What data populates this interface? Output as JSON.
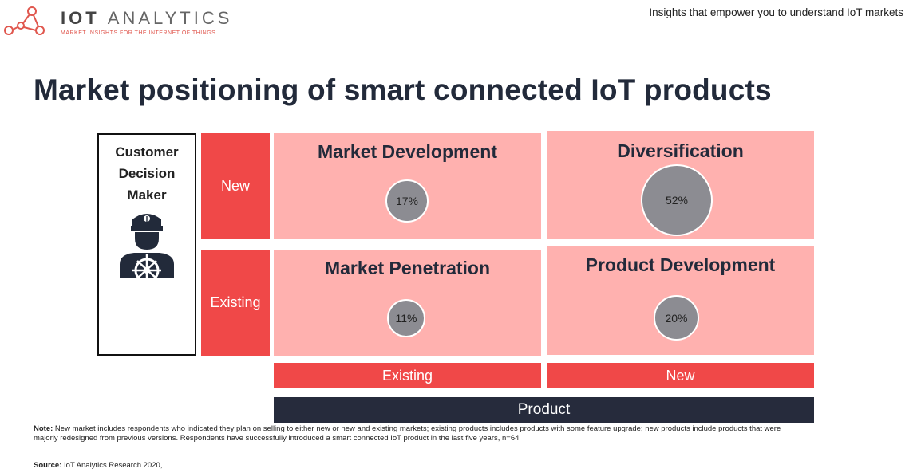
{
  "brand": {
    "name_bold": "IOT",
    "name_light": "ANALYTICS",
    "tagline": "MARKET INSIGHTS FOR THE INTERNET OF THINGS",
    "accent_color": "#f04848"
  },
  "header": {
    "tagline": "Insights that empower you to understand IoT markets"
  },
  "title": "Market positioning of smart connected IoT products",
  "matrix": {
    "y_axis_label": "Customer Decision Maker",
    "y_axis_icon": "ship-captain-icon",
    "rows": [
      "New",
      "Existing"
    ],
    "columns": [
      "Existing",
      "New"
    ],
    "x_axis_label": "Product",
    "quadrants": [
      {
        "title": "Market Development",
        "value": "17%",
        "share": 0.17
      },
      {
        "title": "Diversification",
        "value": "52%",
        "share": 0.52
      },
      {
        "title": "Market Penetration",
        "value": "11%",
        "share": 0.11
      },
      {
        "title": "Product Development",
        "value": "20%",
        "share": 0.2
      }
    ],
    "colors": {
      "quadrant": "#ffb1af",
      "label": "#f04848",
      "axis": "#262b3c",
      "bubble": "#8c8c92"
    }
  },
  "footer": {
    "note_label": "Note:",
    "note_text": "New market includes respondents who indicated they plan on selling to either new or new and existing markets; existing products includes products with some feature upgrade; new products include products that were majorly redesigned from previous versions. Respondents have successfully introduced a smart connected IoT product in the last five years, n=64",
    "source_label": "Source:",
    "source_text": "IoT Analytics Research 2020,"
  }
}
